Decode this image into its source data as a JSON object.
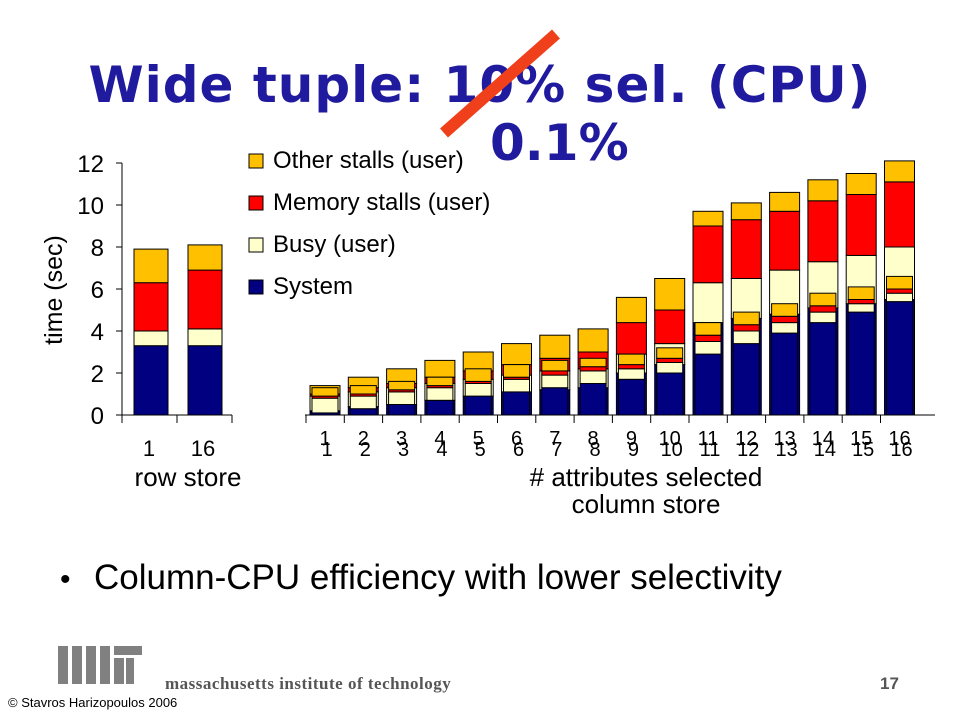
{
  "slide": {
    "title": "Wide tuple: 10% sel. (CPU)",
    "correction": "0.1%",
    "bullet": "Column-CPU efficiency with lower selectivity",
    "footer_institution": "massachusetts institute of technology",
    "page_number": "17",
    "copyright": "© Stavros Harizopoulos 2006"
  },
  "colors": {
    "title": "#1f1a9e",
    "strike": "#f0401b",
    "system": "#000080",
    "busy": "#ffffcc",
    "memory": "#ff0000",
    "other": "#ffc000"
  },
  "chart_data": {
    "type": "bar",
    "stacked": true,
    "ylabel": "time (sec)",
    "ylim": [
      0,
      12
    ],
    "yticks": [
      "0",
      "2",
      "4",
      "6",
      "8",
      "10",
      "12"
    ],
    "legend": {
      "placement": "top-left",
      "entries": [
        "Other stalls (user)",
        "Memory stalls (user)",
        "Busy (user)",
        "System"
      ]
    },
    "groups": [
      {
        "label": "row store",
        "categories": [
          "1",
          "16"
        ],
        "series": [
          {
            "name": "System",
            "values": [
              3.3,
              3.3
            ]
          },
          {
            "name": "Busy (user)",
            "values": [
              0.7,
              0.8
            ]
          },
          {
            "name": "Memory stalls (user)",
            "values": [
              2.3,
              2.8
            ]
          },
          {
            "name": "Other stalls (user)",
            "values": [
              1.6,
              1.2
            ]
          }
        ]
      },
      {
        "label": "column store",
        "xlabel": "# attributes selected",
        "categories": [
          "1",
          "2",
          "3",
          "4",
          "5",
          "6",
          "7",
          "8",
          "9",
          "10",
          "11",
          "12",
          "13",
          "14",
          "15",
          "16"
        ],
        "overlay": {
          "categories": [
            "1",
            "2",
            "3",
            "4",
            "5",
            "6",
            "7",
            "8",
            "9",
            "10",
            "11",
            "12",
            "13",
            "14",
            "15",
            "16"
          ],
          "series": [
            {
              "name": "System",
              "values": [
                0.1,
                0.3,
                0.5,
                0.7,
                0.9,
                1.1,
                1.3,
                1.5,
                1.7,
                2.0,
                2.9,
                3.4,
                3.9,
                4.4,
                4.9,
                5.4
              ]
            },
            {
              "name": "Busy (user)",
              "values": [
                0.7,
                0.6,
                0.6,
                0.6,
                0.6,
                0.6,
                0.6,
                0.6,
                0.5,
                0.5,
                0.6,
                0.6,
                0.5,
                0.5,
                0.4,
                0.4
              ]
            },
            {
              "name": "Memory stalls (user)",
              "values": [
                0.1,
                0.1,
                0.1,
                0.1,
                0.1,
                0.1,
                0.2,
                0.2,
                0.2,
                0.2,
                0.3,
                0.3,
                0.3,
                0.3,
                0.2,
                0.2
              ]
            },
            {
              "name": "Other stalls (user)",
              "values": [
                0.4,
                0.4,
                0.4,
                0.4,
                0.6,
                0.6,
                0.5,
                0.4,
                0.5,
                0.5,
                0.6,
                0.6,
                0.6,
                0.6,
                0.6,
                0.6
              ]
            }
          ]
        },
        "series": [
          {
            "name": "System",
            "values": [
              0.2,
              0.4,
              0.5,
              0.7,
              0.9,
              1.1,
              1.2,
              1.3,
              2.0,
              2.4,
              4.4,
              4.6,
              4.8,
              5.1,
              5.3,
              5.5
            ]
          },
          {
            "name": "Busy (user)",
            "values": [
              0.7,
              0.7,
              0.8,
              0.8,
              0.8,
              0.8,
              0.9,
              0.9,
              0.9,
              1.0,
              1.9,
              1.9,
              2.1,
              2.2,
              2.3,
              2.5
            ]
          },
          {
            "name": "Memory stalls (user)",
            "values": [
              0.1,
              0.2,
              0.2,
              0.3,
              0.4,
              0.5,
              0.6,
              0.8,
              1.5,
              1.6,
              2.7,
              2.8,
              2.8,
              2.9,
              2.9,
              3.1
            ]
          },
          {
            "name": "Other stalls (user)",
            "values": [
              0.4,
              0.5,
              0.7,
              0.8,
              0.9,
              1.0,
              1.1,
              1.1,
              1.2,
              1.5,
              0.7,
              0.8,
              0.9,
              1.0,
              1.0,
              1.0
            ]
          }
        ]
      }
    ]
  }
}
